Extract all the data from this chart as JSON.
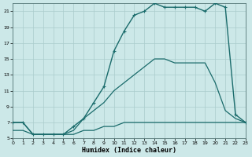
{
  "xlabel": "Humidex (Indice chaleur)",
  "bg_color": "#cce8e8",
  "line_color": "#1a6b6b",
  "grid_color": "#aacccc",
  "xlim": [
    0,
    23
  ],
  "ylim": [
    5,
    22
  ],
  "xticks": [
    0,
    1,
    2,
    3,
    4,
    5,
    6,
    7,
    8,
    9,
    10,
    11,
    12,
    13,
    14,
    15,
    16,
    17,
    18,
    19,
    20,
    21,
    22,
    23
  ],
  "yticks": [
    5,
    7,
    9,
    11,
    13,
    15,
    17,
    19,
    21
  ],
  "curve_top_x": [
    0,
    1,
    2,
    3,
    4,
    5,
    6,
    7,
    8,
    9,
    10,
    11,
    12,
    13,
    14,
    15,
    16,
    17,
    18,
    19,
    20,
    21,
    22,
    23
  ],
  "curve_top_y": [
    7.0,
    7.0,
    5.5,
    5.5,
    5.5,
    5.5,
    6.5,
    7.5,
    9.5,
    11.5,
    16.0,
    18.5,
    20.5,
    21.0,
    22.0,
    21.5,
    21.5,
    21.5,
    21.5,
    21.0,
    22.0,
    21.5,
    8.0,
    7.0
  ],
  "curve_mid_x": [
    0,
    1,
    2,
    3,
    4,
    5,
    6,
    7,
    8,
    9,
    10,
    11,
    12,
    13,
    14,
    15,
    16,
    17,
    18,
    19,
    20,
    21,
    22,
    23
  ],
  "curve_mid_y": [
    7.0,
    7.0,
    5.5,
    5.5,
    5.5,
    5.5,
    6.0,
    7.5,
    8.5,
    9.5,
    11.0,
    12.0,
    13.0,
    14.0,
    15.0,
    15.0,
    14.5,
    14.5,
    14.5,
    14.5,
    12.0,
    8.5,
    7.5,
    7.0
  ],
  "curve_bot_x": [
    0,
    1,
    2,
    3,
    4,
    5,
    6,
    7,
    8,
    9,
    10,
    11,
    12,
    13,
    14,
    15,
    16,
    17,
    18,
    19,
    20,
    21,
    22,
    23
  ],
  "curve_bot_y": [
    6.0,
    6.0,
    5.5,
    5.5,
    5.5,
    5.5,
    5.5,
    6.0,
    6.0,
    6.5,
    6.5,
    7.0,
    7.0,
    7.0,
    7.0,
    7.0,
    7.0,
    7.0,
    7.0,
    7.0,
    7.0,
    7.0,
    7.0,
    7.0
  ]
}
